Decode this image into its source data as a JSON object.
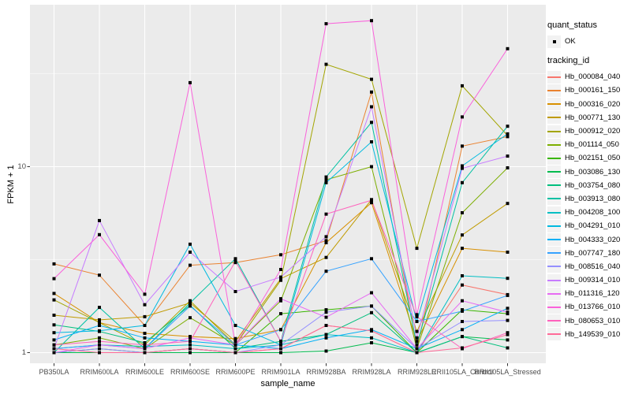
{
  "figure": {
    "y_axis": {
      "title": "FPKM + 1",
      "ticks": [
        {
          "label": "10",
          "value": 10
        },
        {
          "label": "1",
          "value": 1
        }
      ]
    },
    "x_axis": {
      "title": "sample_name"
    },
    "legend": {
      "quant_status_title": "quant_status",
      "ok_label": "OK",
      "tracking_title": "tracking_id"
    },
    "colors": {
      "panel_bg": "#EBEBEB",
      "grid": "#FFFFFF",
      "tick_text": "#4D4D4D",
      "axis_text": "#000000",
      "key_bg": "#F2F2F2",
      "point": "#000000"
    }
  },
  "chart_data": {
    "type": "line",
    "title": "",
    "xlabel": "sample_name",
    "ylabel": "FPKM + 1",
    "y_scale": "log10",
    "ylim": [
      0.88,
      75
    ],
    "y_major_ticks": [
      1,
      10
    ],
    "y_minor_ticks": [
      3.162,
      31.62
    ],
    "grid": true,
    "legend_position": "right",
    "point_marker": "black-square",
    "quant_status": "OK",
    "categories": [
      "PB350LA",
      "RRIM600LA",
      "RRIM600LE",
      "RRIM600SE",
      "RRIM600PE",
      "RRIM901LA",
      "RRIM928BA",
      "RRIM928LA",
      "RRIM928LE",
      "RRII105LA_Control",
      "RRII105LA_Stressed"
    ],
    "series": [
      {
        "name": "Hb_000084_040",
        "color": "#F8766D",
        "values": [
          1.0,
          1.0,
          1.0,
          1.05,
          1.0,
          1.05,
          1.4,
          1.31,
          1.0,
          2.31,
          2.05
        ]
      },
      {
        "name": "Hb_000161_150",
        "color": "#EA8331",
        "values": [
          3.0,
          2.61,
          1.4,
          2.95,
          3.05,
          3.36,
          4.0,
          25.2,
          1.05,
          12.9,
          14.5
        ]
      },
      {
        "name": "Hb_000316_020",
        "color": "#D89000",
        "values": [
          2.08,
          1.45,
          1.27,
          1.22,
          1.19,
          1.33,
          3.9,
          6.4,
          1.15,
          3.64,
          3.47
        ]
      },
      {
        "name": "Hb_000771_130",
        "color": "#C09B00",
        "values": [
          1.59,
          1.5,
          1.56,
          1.85,
          1.15,
          2.5,
          3.25,
          6.65,
          1.3,
          4.29,
          6.34
        ]
      },
      {
        "name": "Hb_000912_020",
        "color": "#A3A500",
        "values": [
          1.92,
          1.45,
          1.1,
          1.9,
          1.1,
          2.45,
          35.5,
          29.5,
          3.64,
          27.2,
          14.7
        ]
      },
      {
        "name": "Hb_001114_050",
        "color": "#7CAE00",
        "values": [
          1.1,
          1.2,
          1.05,
          1.54,
          1.1,
          1.9,
          8.5,
          10.0,
          1.05,
          5.65,
          9.85
        ]
      },
      {
        "name": "Hb_002151_050",
        "color": "#39B600",
        "values": [
          1.0,
          1.05,
          1.0,
          1.05,
          1.0,
          1.62,
          1.7,
          1.78,
          1.0,
          1.7,
          1.62
        ]
      },
      {
        "name": "Hb_003086_130",
        "color": "#00BB4E",
        "values": [
          1.0,
          1.0,
          1.0,
          1.0,
          1.0,
          1.0,
          1.02,
          1.13,
          1.0,
          1.22,
          1.17
        ]
      },
      {
        "name": "Hb_003754_080",
        "color": "#00BF7D",
        "values": [
          1.41,
          1.3,
          1.13,
          1.8,
          1.05,
          1.15,
          1.25,
          1.64,
          1.0,
          1.22,
          1.06
        ]
      },
      {
        "name": "Hb_003913_080",
        "color": "#00C1A3",
        "values": [
          1.0,
          1.75,
          1.05,
          1.85,
          3.2,
          1.15,
          8.8,
          17.3,
          1.1,
          8.2,
          16.5
        ]
      },
      {
        "name": "Hb_004208_100",
        "color": "#00BFC4",
        "values": [
          1.05,
          1.1,
          1.08,
          1.1,
          1.05,
          1.1,
          1.25,
          1.2,
          1.0,
          2.59,
          2.51
        ]
      },
      {
        "name": "Hb_004291_010",
        "color": "#00BAE0",
        "values": [
          1.28,
          1.31,
          1.4,
          3.83,
          1.4,
          1.1,
          8.2,
          13.6,
          1.47,
          10.1,
          15.0
        ]
      },
      {
        "name": "Hb_004333_020",
        "color": "#00B0F6",
        "values": [
          1.17,
          1.4,
          1.2,
          1.15,
          1.1,
          1.05,
          1.2,
          1.33,
          1.05,
          1.33,
          1.73
        ]
      },
      {
        "name": "Hb_007747_180",
        "color": "#35A2FF",
        "values": [
          1.05,
          1.1,
          1.05,
          1.78,
          1.1,
          1.33,
          2.74,
          3.2,
          1.47,
          1.67,
          2.03
        ]
      },
      {
        "name": "Hb_008516_040",
        "color": "#9590FF",
        "values": [
          1.0,
          1.05,
          1.0,
          1.05,
          1.0,
          1.1,
          1.65,
          1.78,
          1.05,
          1.47,
          1.49
        ]
      },
      {
        "name": "Hb_009314_010",
        "color": "#C77CFF",
        "values": [
          1.05,
          5.13,
          1.81,
          3.47,
          2.13,
          2.55,
          4.2,
          21.0,
          1.2,
          9.8,
          11.4
        ]
      },
      {
        "name": "Hb_011316_120",
        "color": "#E76BF3",
        "values": [
          1.0,
          1.1,
          1.05,
          1.2,
          1.1,
          1.95,
          1.55,
          2.1,
          1.05,
          1.9,
          1.65
        ]
      },
      {
        "name": "Hb_013766_010",
        "color": "#FA62DB",
        "values": [
          2.5,
          4.31,
          2.06,
          28.3,
          1.1,
          2.8,
          58.7,
          61.0,
          1.6,
          18.5,
          43.1
        ]
      },
      {
        "name": "Hb_080653_010",
        "color": "#FF62BC",
        "values": [
          1.1,
          1.15,
          1.1,
          1.15,
          3.1,
          1.15,
          5.56,
          6.6,
          1.56,
          1.05,
          1.28
        ]
      },
      {
        "name": "Hb_149539_010",
        "color": "#FF6A98",
        "values": [
          1.05,
          1.0,
          1.0,
          1.05,
          1.0,
          1.05,
          1.4,
          1.31,
          1.0,
          1.06,
          1.25
        ]
      }
    ]
  }
}
